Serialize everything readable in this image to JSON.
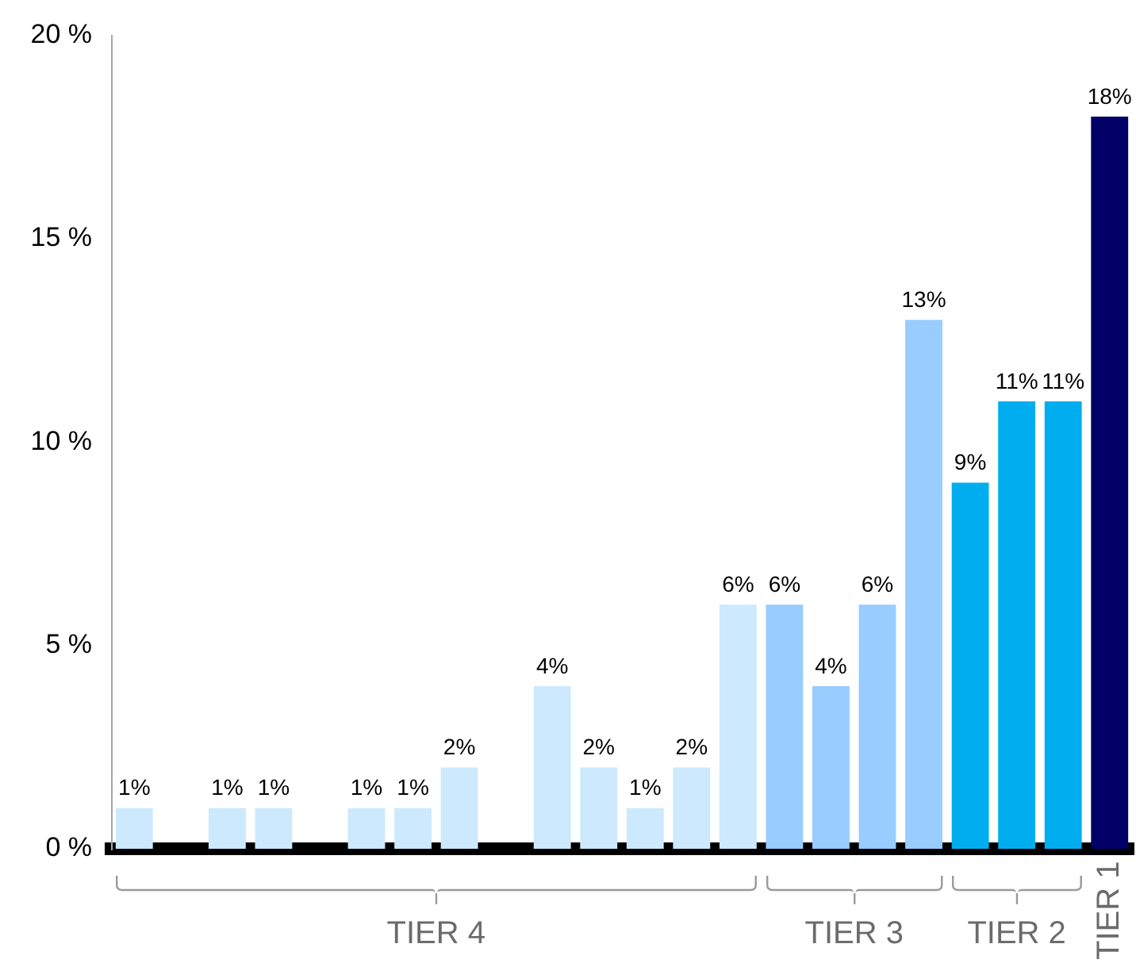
{
  "chart_data": {
    "type": "bar",
    "categories": [
      null,
      null,
      null,
      null,
      null,
      null,
      null,
      null,
      null,
      null,
      null,
      null,
      null,
      null,
      null,
      null,
      null,
      null,
      null,
      null,
      null,
      null
    ],
    "series": [
      {
        "name": "TIER 4",
        "color": "#cce9fd",
        "values": [
          1,
          null,
          1,
          1,
          null,
          1,
          1,
          2,
          null,
          4,
          2,
          1,
          2,
          6,
          null,
          null,
          null,
          null,
          null,
          null,
          null,
          null
        ],
        "value_labels": [
          "1%",
          null,
          "1%",
          "1%",
          null,
          "1%",
          "1%",
          "2%",
          null,
          "4%",
          "2%",
          "1%",
          "2%",
          "6%",
          null,
          null,
          null,
          null,
          null,
          null,
          null,
          null
        ]
      },
      {
        "name": "TIER 3",
        "color": "#99ccff",
        "values": [
          null,
          null,
          null,
          null,
          null,
          null,
          null,
          null,
          null,
          null,
          null,
          null,
          null,
          null,
          6,
          4,
          6,
          13,
          null,
          null,
          null,
          null
        ],
        "value_labels": [
          null,
          null,
          null,
          null,
          null,
          null,
          null,
          null,
          null,
          null,
          null,
          null,
          null,
          null,
          "6%",
          "4%",
          "6%",
          "13%",
          null,
          null,
          null,
          null
        ]
      },
      {
        "name": "TIER 2",
        "color": "#00adef",
        "values": [
          null,
          null,
          null,
          null,
          null,
          null,
          null,
          null,
          null,
          null,
          null,
          null,
          null,
          null,
          null,
          null,
          null,
          null,
          9,
          11,
          11,
          null
        ],
        "value_labels": [
          null,
          null,
          null,
          null,
          null,
          null,
          null,
          null,
          null,
          null,
          null,
          null,
          null,
          null,
          null,
          null,
          null,
          null,
          "9%",
          "11%",
          "11%",
          null
        ]
      },
      {
        "name": "TIER 1",
        "color": "#000066",
        "values": [
          null,
          null,
          null,
          null,
          null,
          null,
          null,
          null,
          null,
          null,
          null,
          null,
          null,
          null,
          null,
          null,
          null,
          null,
          null,
          null,
          null,
          18
        ],
        "value_labels": [
          null,
          null,
          null,
          null,
          null,
          null,
          null,
          null,
          null,
          null,
          null,
          null,
          null,
          null,
          null,
          null,
          null,
          null,
          null,
          null,
          null,
          "18%"
        ]
      }
    ],
    "ylim": [
      0,
      20
    ],
    "yticks": [
      {
        "value": 0,
        "label": "0 %"
      },
      {
        "value": 5,
        "label": "5 %"
      },
      {
        "value": 10,
        "label": "10 %"
      },
      {
        "value": 15,
        "label": "15 %"
      },
      {
        "value": 20,
        "label": "20 %"
      }
    ],
    "grid": false,
    "legend": false
  }
}
